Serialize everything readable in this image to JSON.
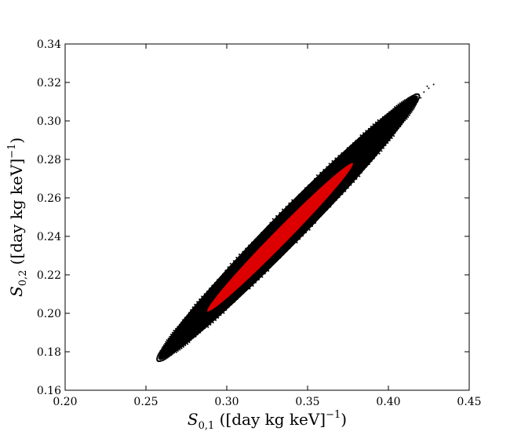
{
  "chart_data": {
    "type": "scatter",
    "title": "",
    "xlabel": {
      "symbol": "S",
      "sub": "0,1",
      "text": " ([day kg keV]",
      "sup": "−1",
      "close": ")"
    },
    "ylabel": {
      "symbol": "S",
      "sub": "0,2",
      "text": " ([day kg keV]",
      "sup": "−1",
      "close": ")"
    },
    "xlim": [
      0.2,
      0.45
    ],
    "ylim": [
      0.16,
      0.34
    ],
    "xticks": [
      "0.20",
      "0.25",
      "0.30",
      "0.35",
      "0.40",
      "0.45"
    ],
    "yticks": [
      "0.16",
      "0.18",
      "0.20",
      "0.22",
      "0.24",
      "0.26",
      "0.28",
      "0.30",
      "0.32",
      "0.34"
    ],
    "grid": false,
    "legend": "none",
    "series": [
      {
        "color": "#000000",
        "description": "outer credible region (dense point cloud)",
        "region": {
          "center": [
            0.34,
            0.247
          ],
          "major_axis_start": [
            0.258,
            0.176
          ],
          "major_axis_end": [
            0.418,
            0.313
          ],
          "half_width_y": 0.012
        },
        "stray_points": [
          [
            0.422,
            0.315
          ],
          [
            0.425,
            0.317
          ],
          [
            0.428,
            0.319
          ],
          [
            0.42,
            0.312
          ],
          [
            0.424,
            0.318
          ]
        ]
      },
      {
        "color": "#dd0000",
        "description": "inner credible region",
        "region": {
          "center": [
            0.333,
            0.2395
          ],
          "major_axis_start": [
            0.288,
            0.201
          ],
          "major_axis_end": [
            0.378,
            0.278
          ],
          "half_width_y": 0.0055
        }
      }
    ]
  }
}
